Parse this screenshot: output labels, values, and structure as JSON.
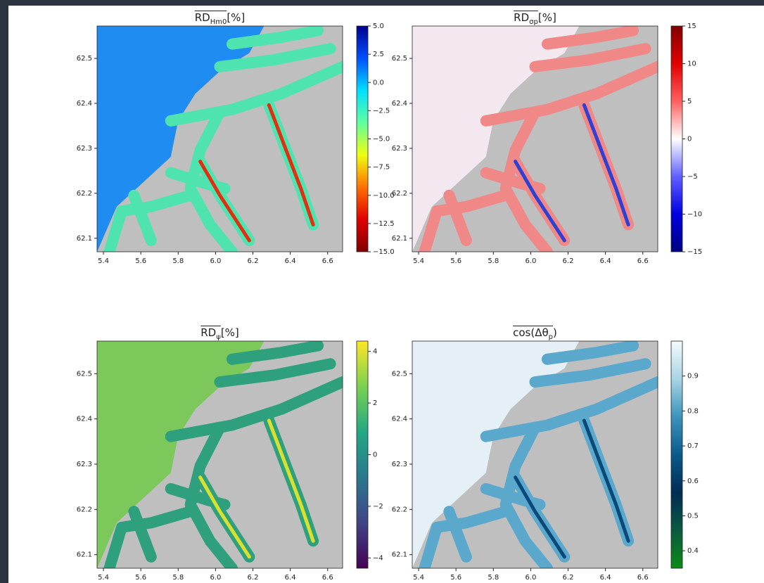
{
  "chart_data": [
    {
      "type": "heatmap",
      "title_main": "RD",
      "title_sub": "Hm0",
      "title_tail": "[%]",
      "xlim": [
        5.366,
        6.68
      ],
      "xticks": [
        5.4,
        5.6,
        5.8,
        {
          "value": 6,
          "label": "6.0"
        },
        6.2,
        6.4,
        6.6
      ],
      "ylim": [
        62.07,
        62.572
      ],
      "yticks": [
        62.1,
        62.2,
        62.3,
        62.4,
        62.5
      ],
      "clim": [
        -15,
        5
      ],
      "cticks": [
        {
          "value": 5,
          "label": "5.0"
        },
        2.5,
        {
          "value": 0,
          "label": "0.0"
        },
        {
          "value": -2.5,
          "label": "−2.5"
        },
        {
          "value": -5,
          "label": "−5.0"
        },
        {
          "value": -7.5,
          "label": "−7.5"
        },
        {
          "value": -10,
          "label": "−10.0"
        },
        {
          "value": -12.5,
          "label": "−12.5"
        },
        {
          "value": -15,
          "label": "−15.0"
        }
      ],
      "colormap": [
        "#00008f",
        "#0050ff",
        "#00dfff",
        "#60ff9f",
        "#efff10",
        "#ff7000",
        "#df0000",
        "#800000"
      ],
      "land_color": "#bfbfbf",
      "sea_color": "#1e8cf0",
      "fjord_color": "#4fe3b0",
      "hot_color": "#e03010"
    },
    {
      "type": "heatmap",
      "title_main": "RD",
      "title_sub": "σp",
      "title_tail": "[%]",
      "xlim": [
        5.366,
        6.68
      ],
      "xticks": [
        5.4,
        5.6,
        5.8,
        {
          "value": 6,
          "label": "6.0"
        },
        6.2,
        6.4,
        6.6
      ],
      "ylim": [
        62.07,
        62.572
      ],
      "yticks": [
        62.1,
        62.2,
        62.3,
        62.4,
        62.5
      ],
      "clim": [
        -15,
        15
      ],
      "cticks": [
        15,
        10,
        5,
        0,
        {
          "value": -5,
          "label": "−5"
        },
        {
          "value": -10,
          "label": "−10"
        },
        {
          "value": -15,
          "label": "−15"
        }
      ],
      "colormap": [
        "#800000",
        "#e00000",
        "#ff6060",
        "#ffffff",
        "#6060ff",
        "#0000e0",
        "#000080"
      ],
      "land_color": "#bfbfbf",
      "sea_color": "#f4e8f0",
      "fjord_color": "#f08888",
      "hot_color": "#3040d0"
    },
    {
      "type": "heatmap",
      "title_main": "RD",
      "title_sub": "ψ",
      "title_tail": "[%]",
      "xlim": [
        5.366,
        6.68
      ],
      "xticks": [
        5.4,
        5.6,
        5.8,
        {
          "value": 6,
          "label": "6.0"
        },
        6.2,
        6.4,
        6.6
      ],
      "ylim": [
        62.07,
        62.572
      ],
      "yticks": [
        62.1,
        62.2,
        62.3,
        62.4,
        62.5
      ],
      "clim": [
        -4.4,
        4.4
      ],
      "cticks": [
        4,
        2,
        0,
        {
          "value": -2,
          "label": "−2"
        },
        {
          "value": -4,
          "label": "−4"
        }
      ],
      "colormap": [
        "#fde725",
        "#7ad151",
        "#22a884",
        "#2a788e",
        "#414487",
        "#440154"
      ],
      "land_color": "#bfbfbf",
      "sea_color": "#7cc85a",
      "fjord_color": "#2fa07e",
      "hot_color": "#d8e030"
    },
    {
      "type": "heatmap",
      "title_main": "cos(Δθ",
      "title_sub": "p",
      "title_tail": ")",
      "xlim": [
        5.366,
        6.68
      ],
      "xticks": [
        5.4,
        5.6,
        5.8,
        {
          "value": 6,
          "label": "6.0"
        },
        6.2,
        6.4,
        6.6
      ],
      "ylim": [
        62.07,
        62.572
      ],
      "yticks": [
        62.1,
        62.2,
        62.3,
        62.4,
        62.5
      ],
      "clim": [
        0.35,
        1.0
      ],
      "cticks": [
        0.9,
        0.8,
        0.7,
        0.6,
        0.5,
        0.4
      ],
      "colormap": [
        "#f4fafc",
        "#a8d4e4",
        "#3c94bc",
        "#0a5a8c",
        "#002c54",
        "#0a5a40",
        "#0a8c14"
      ],
      "land_color": "#bfbfbf",
      "sea_color": "#e4f0f6",
      "fjord_color": "#5aa8cc",
      "hot_color": "#0a4a7a"
    }
  ]
}
